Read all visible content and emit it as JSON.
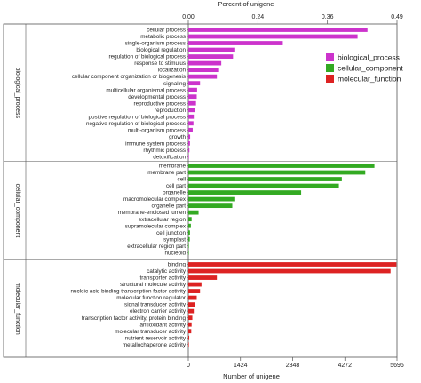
{
  "chart_data": {
    "type": "bar",
    "orientation": "horizontal",
    "x_axis_bottom": {
      "label": "Number of unigene",
      "ticks": [
        "0",
        "1424",
        "2848",
        "4272",
        "5696"
      ],
      "range": [
        0,
        5696
      ]
    },
    "x_axis_top": {
      "label": "Percent of unigene",
      "ticks": [
        "0.00",
        "0.24",
        "0.36",
        "0.49"
      ]
    },
    "legend": {
      "position": "top-right",
      "items": [
        {
          "name": "biological_process",
          "color": "#cc33cc"
        },
        {
          "name": "cellular_component",
          "color": "#33aa22"
        },
        {
          "name": "molecular_function",
          "color": "#dd2222"
        }
      ]
    },
    "groups": [
      {
        "name": "biological_process",
        "color": "#cc33cc",
        "categories": [
          "cellular process",
          "metabolic process",
          "single-organism process",
          "biological regulation",
          "regulation of biological process",
          "response to stimulus",
          "localization",
          "cellular component organization or biogenesis",
          "signaling",
          "multicellular organismal process",
          "developmental process",
          "reproductive process",
          "reproduction",
          "positive regulation of biological process",
          "negative regulation of biological process",
          "multi-organism process",
          "growth",
          "immune system process",
          "rhythmic process",
          "detoxification"
        ],
        "values": [
          4890,
          4620,
          2580,
          1280,
          1220,
          900,
          840,
          780,
          320,
          240,
          230,
          210,
          190,
          150,
          140,
          120,
          50,
          45,
          30,
          15
        ]
      },
      {
        "name": "cellular_component",
        "color": "#33aa22",
        "categories": [
          "membrane",
          "membrane part",
          "cell",
          "cell part",
          "organelle",
          "macromolecular complex",
          "organelle part",
          "membrane-enclosed lumen",
          "extracellular region",
          "supramolecular complex",
          "cell junction",
          "symplast",
          "extracellular region part",
          "nucleoid"
        ],
        "values": [
          5080,
          4830,
          4190,
          4110,
          3080,
          1280,
          1200,
          280,
          90,
          70,
          45,
          40,
          15,
          8
        ]
      },
      {
        "name": "molecular_function",
        "color": "#dd2222",
        "categories": [
          "binding",
          "catalytic activity",
          "transporter activity",
          "structural molecule activity",
          "nucleic acid binding transcription factor activity",
          "molecular function regulator",
          "signal transducer activity",
          "electron carrier activity",
          "transcription factor activity, protein binding",
          "antioxidant activity",
          "molecular transducer activity",
          "nutrient reservoir activity",
          "metallochaperone activity"
        ],
        "values": [
          5680,
          5520,
          780,
          360,
          320,
          230,
          180,
          150,
          110,
          90,
          80,
          25,
          8
        ]
      }
    ]
  }
}
